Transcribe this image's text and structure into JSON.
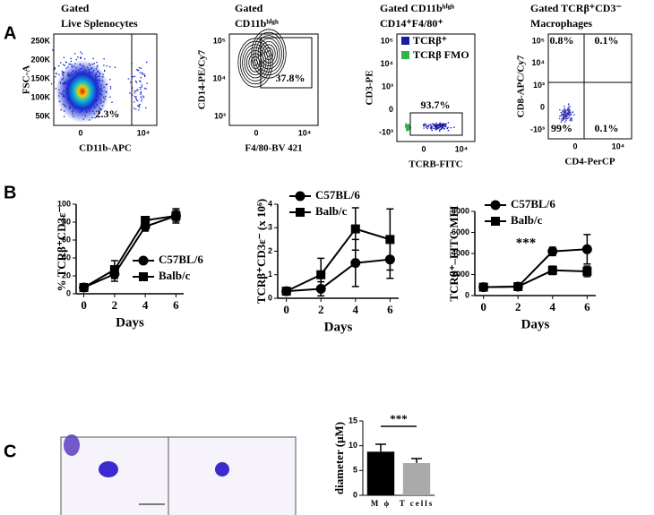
{
  "panel_labels": [
    "A",
    "B",
    "C"
  ],
  "flow_panels": [
    {
      "title": [
        "Gated",
        "Live Splenocytes"
      ],
      "ylabel": "FSC-A",
      "xlabel": "CD11b-APC",
      "yticks": [
        "50K",
        "100K",
        "150K",
        "200K",
        "250K"
      ],
      "xticks": [
        "0",
        "10⁴"
      ],
      "gates": [
        "2.3%"
      ]
    },
    {
      "title": [
        "Gated",
        "CD11bʰⁱᵍʰ"
      ],
      "ylabel": "CD14-PE/Cy7",
      "xlabel": "F4/80-BV 421",
      "yticks": [
        "10³",
        "10⁴",
        "10⁵"
      ],
      "xticks": [
        "0",
        "10⁴"
      ],
      "gates": [
        "37.8%"
      ]
    },
    {
      "title": [
        "Gated CD11bʰⁱᵍʰ",
        "CD14⁺F4/80⁺"
      ],
      "ylabel": "CD3-PE",
      "xlabel": "TCRB-FITC",
      "yticks": [
        "-10³",
        "0",
        "10³",
        "10⁴",
        "10⁵"
      ],
      "xticks": [
        "0",
        "10⁴"
      ],
      "gates": [
        "93.7%"
      ],
      "legend": [
        {
          "name": "TCRβ⁺",
          "color": "#1a1aa8"
        },
        {
          "name": "TCRβ FMO",
          "color": "#2fb34a"
        }
      ]
    },
    {
      "title": [
        "Gated TCRβ⁺CD3⁻",
        "Macrophages"
      ],
      "ylabel": "CD8-APC/Cy7",
      "xlabel": "CD4-PerCP",
      "yticks": [
        "-10³",
        "0",
        "10³",
        "10⁴",
        "10⁵"
      ],
      "xticks": [
        "0",
        "10⁴"
      ],
      "gates": [
        "0.8%",
        "0.1%",
        "99%",
        "0.1%"
      ]
    }
  ],
  "chart_data": [
    {
      "type": "line",
      "ylabel": "% TCRβ⁺CD3ε⁻",
      "xlabel": "Days",
      "x": [
        0,
        2,
        4,
        6
      ],
      "xlim": [
        -0.5,
        6.5
      ],
      "xticks": [
        0,
        2,
        4,
        6
      ],
      "ylim": [
        0,
        100
      ],
      "yticks": [
        0,
        20,
        40,
        60,
        80,
        100
      ],
      "series": [
        {
          "name": "C57BL/6",
          "color": "#000000",
          "marker": "circle",
          "values": [
            7,
            22,
            75,
            87
          ],
          "errors": [
            2,
            8,
            5,
            6
          ]
        },
        {
          "name": "Balb/c",
          "color": "#000000",
          "marker": "square",
          "values": [
            7,
            27,
            82,
            87
          ],
          "errors": [
            2,
            10,
            4,
            8
          ]
        }
      ]
    },
    {
      "type": "line",
      "ylabel": "TCRβ⁺CD3ε⁻ (x 10⁶)",
      "xlabel": "Days",
      "x": [
        0,
        2,
        4,
        6
      ],
      "xlim": [
        -0.5,
        6.5
      ],
      "xticks": [
        0,
        2,
        4,
        6
      ],
      "ylim": [
        0,
        4
      ],
      "yticks": [
        0,
        1,
        2,
        3,
        4
      ],
      "series": [
        {
          "name": "C57BL/6",
          "color": "#000000",
          "marker": "circle",
          "values": [
            0.3,
            0.4,
            1.5,
            1.65
          ],
          "errors": [
            0.1,
            0.3,
            1.0,
            0.8
          ]
        },
        {
          "name": "Balb/c",
          "color": "#000000",
          "marker": "square",
          "values": [
            0.3,
            1.0,
            2.95,
            2.5
          ],
          "errors": [
            0.1,
            0.7,
            0.9,
            1.3
          ]
        }
      ]
    },
    {
      "type": "line",
      "ylabel": "TCRβ⁺–FITC MFI",
      "xlabel": "Days",
      "x": [
        0,
        2,
        4,
        6
      ],
      "xlim": [
        -0.5,
        6.5
      ],
      "xticks": [
        0,
        2,
        4,
        6
      ],
      "ylim": [
        0,
        8000
      ],
      "yticks": [
        0,
        2000,
        4000,
        6000,
        8000
      ],
      "annotation": "***",
      "series": [
        {
          "name": "C57BL/6",
          "color": "#000000",
          "marker": "circle",
          "values": [
            800,
            850,
            4200,
            4400
          ],
          "errors": [
            200,
            150,
            400,
            1400
          ]
        },
        {
          "name": "Balb/c",
          "color": "#000000",
          "marker": "square",
          "values": [
            800,
            850,
            2400,
            2300
          ],
          "errors": [
            200,
            150,
            400,
            500
          ]
        }
      ]
    },
    {
      "type": "bar",
      "ylabel": "diameter (μM)",
      "categories": [
        "M ϕ",
        "T cells"
      ],
      "values": [
        8.8,
        6.5
      ],
      "errors": [
        1.5,
        0.9
      ],
      "colors": [
        "#000000",
        "#aaaaaa"
      ],
      "ylim": [
        0,
        15
      ],
      "yticks": [
        0,
        5,
        10,
        15
      ],
      "annotation": "***"
    }
  ]
}
